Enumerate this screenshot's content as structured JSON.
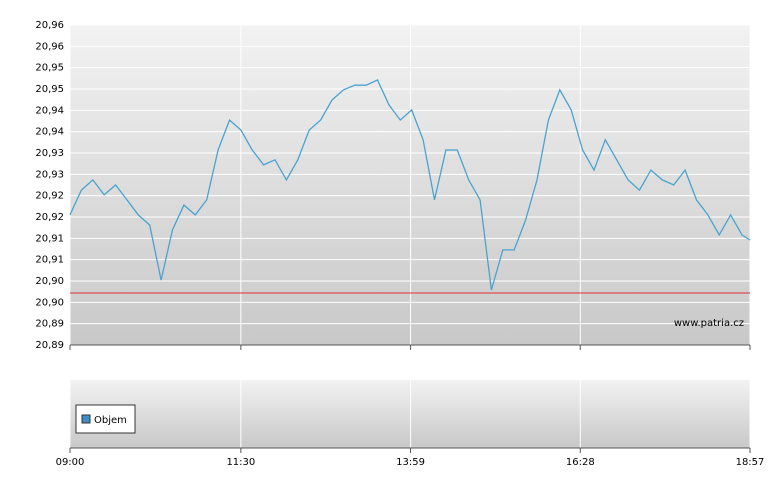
{
  "chart_data": {
    "type": "line",
    "x": [
      "09:00",
      "09:10",
      "09:20",
      "09:30",
      "09:40",
      "09:50",
      "10:00",
      "10:10",
      "10:20",
      "10:30",
      "10:40",
      "10:50",
      "11:00",
      "11:10",
      "11:20",
      "11:30",
      "11:40",
      "11:50",
      "12:00",
      "12:10",
      "12:20",
      "12:30",
      "12:40",
      "12:50",
      "13:00",
      "13:10",
      "13:20",
      "13:30",
      "13:40",
      "13:50",
      "14:00",
      "14:10",
      "14:20",
      "14:30",
      "14:40",
      "14:50",
      "15:00",
      "15:10",
      "15:20",
      "15:30",
      "15:40",
      "15:50",
      "16:00",
      "16:10",
      "16:20",
      "16:30",
      "16:40",
      "16:50",
      "17:00",
      "17:10",
      "17:20",
      "17:30",
      "17:40",
      "17:50",
      "18:00",
      "18:10",
      "18:20",
      "18:30",
      "18:40",
      "18:50",
      "18:57"
    ],
    "series": [
      {
        "color": "#4aa3cf",
        "values": [
          20.918,
          20.9238,
          20.9262,
          20.9227,
          20.925,
          20.9215,
          20.918,
          20.9156,
          20.9027,
          20.9145,
          20.9203,
          20.918,
          20.9215,
          20.9332,
          20.9402,
          20.9379,
          20.9332,
          20.9297,
          20.9309,
          20.9262,
          20.9309,
          20.9379,
          20.9402,
          20.9449,
          20.9473,
          20.9484,
          20.9484,
          20.9496,
          20.9438,
          20.9402,
          20.9426,
          20.9356,
          20.9215,
          20.9332,
          20.9332,
          20.9262,
          20.9215,
          20.9004,
          20.9098,
          20.9098,
          20.9168,
          20.9262,
          20.9402,
          20.9473,
          20.9426,
          20.9332,
          20.9285,
          20.9356,
          20.9309,
          20.9262,
          20.9238,
          20.9285,
          20.9262,
          20.925,
          20.9285,
          20.9215,
          20.918,
          20.9133,
          20.918,
          20.9133,
          20.9121
        ]
      }
    ],
    "reference_line": {
      "value": 20.8997,
      "color": "#e03030"
    },
    "xlim": [
      "09:00",
      "18:57"
    ],
    "xticks": [
      "09:00",
      "11:30",
      "13:59",
      "16:28",
      "18:57"
    ],
    "ylim": [
      20.8875,
      20.9625
    ],
    "yticks": [
      {
        "value": 20.8875,
        "label": "20,89"
      },
      {
        "value": 20.8925,
        "label": "20,89"
      },
      {
        "value": 20.8975,
        "label": "20,90"
      },
      {
        "value": 20.9025,
        "label": "20,90"
      },
      {
        "value": 20.9075,
        "label": "20,91"
      },
      {
        "value": 20.9125,
        "label": "20,91"
      },
      {
        "value": 20.9175,
        "label": "20,92"
      },
      {
        "value": 20.9225,
        "label": "20,92"
      },
      {
        "value": 20.9275,
        "label": "20,93"
      },
      {
        "value": 20.9325,
        "label": "20,93"
      },
      {
        "value": 20.9375,
        "label": "20,94"
      },
      {
        "value": 20.9425,
        "label": "20,94"
      },
      {
        "value": 20.9475,
        "label": "20,95"
      },
      {
        "value": 20.9525,
        "label": "20,95"
      },
      {
        "value": 20.9575,
        "label": "20,96"
      },
      {
        "value": 20.9625,
        "label": "20,96"
      }
    ],
    "grid": true,
    "watermark": "www.patria.cz",
    "volume": {
      "name": "Objem",
      "color": "#3d8fc6"
    }
  }
}
